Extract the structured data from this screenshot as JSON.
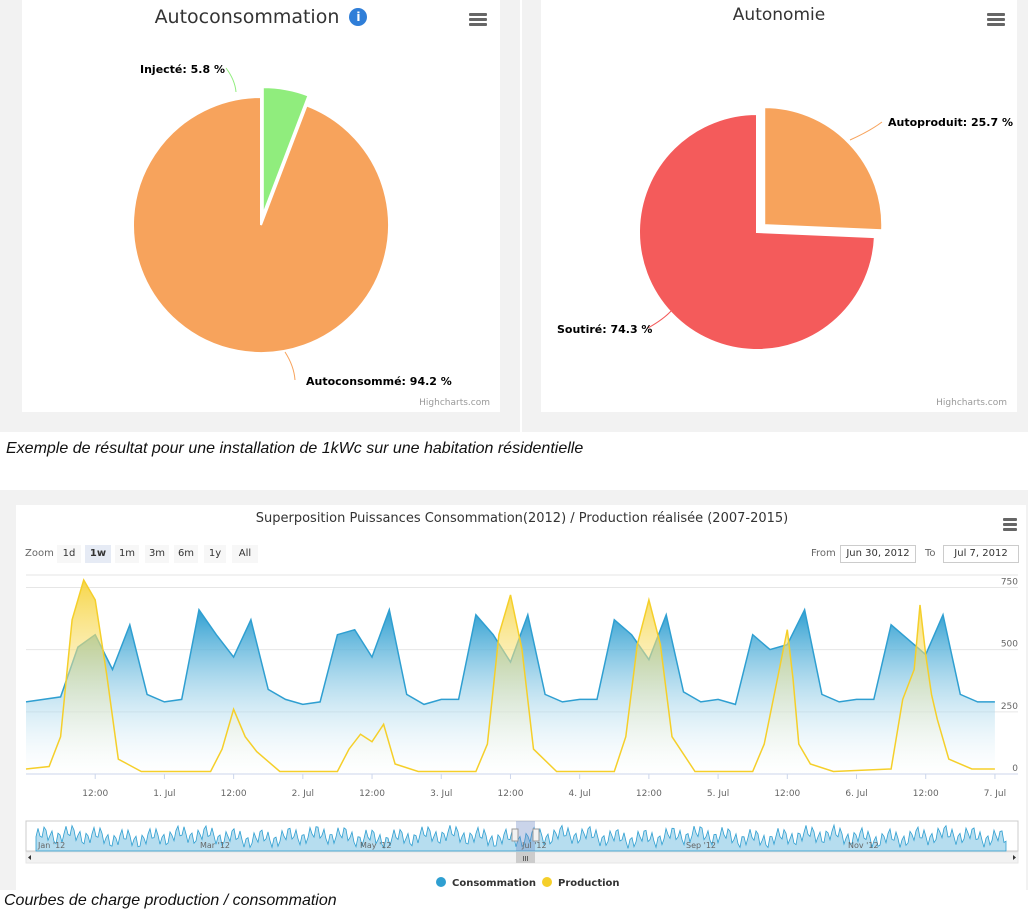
{
  "pie_left": {
    "title": "Autoconsommation",
    "credit": "Highcharts.com"
  },
  "pie_right": {
    "title": "Autonomie",
    "credit": "Highcharts.com"
  },
  "caption_top": "Exemple de résultat pour une installation de 1kWc sur une habitation résidentielle",
  "caption_bottom": "Courbes de charge production / consommation",
  "stock": {
    "title": "Superposition Puissances Consommation(2012) / Production réalisée (2007-2015)",
    "zoom_label": "Zoom",
    "zoom_buttons": [
      "1d",
      "1w",
      "1m",
      "3m",
      "6m",
      "1y",
      "All"
    ],
    "zoom_selected": "1w",
    "from_label": "From",
    "from_value": "Jun 30, 2012",
    "to_label": "To",
    "to_value": "Jul 7, 2012",
    "x_ticks": [
      "12:00",
      "1. Jul",
      "12:00",
      "2. Jul",
      "12:00",
      "3. Jul",
      "12:00",
      "4. Jul",
      "12:00",
      "5. Jul",
      "12:00",
      "6. Jul",
      "12:00",
      "7. Jul"
    ],
    "y_ticks": [
      "0",
      "250",
      "500",
      "750"
    ],
    "navigator_months": [
      "Jan '12",
      "Mar '12",
      "May '12",
      "Jul '12",
      "Sep '12",
      "Nov '12"
    ],
    "navigator_handle_label": "III"
  },
  "colors": {
    "autoconsomme": "#f7a35c",
    "injecte": "#90ed7d",
    "soutire": "#f45b5b",
    "autoproduit": "#f7a35c",
    "consommation": "#2f9fd1",
    "production": "#f5cf2a",
    "info_icon": "#2f7ed8"
  },
  "chart_data": [
    {
      "type": "pie",
      "title": "Autoconsommation",
      "slices": [
        {
          "name": "Injecté",
          "value": 5.8,
          "label": "Injecté: 5.8 %",
          "sliced": true
        },
        {
          "name": "Autoconsommé",
          "value": 94.2,
          "label": "Autoconsommé: 94.2 %"
        }
      ]
    },
    {
      "type": "pie",
      "title": "Autonomie",
      "slices": [
        {
          "name": "Autoproduit",
          "value": 25.7,
          "label": "Autoproduit: 25.7 %",
          "sliced": true
        },
        {
          "name": "Soutiré",
          "value": 74.3,
          "label": "Soutiré: 74.3 %"
        }
      ]
    },
    {
      "type": "area",
      "title": "Superposition Puissances Consommation(2012) / Production réalisée (2007-2015)",
      "x_range": [
        "Jun 30, 2012",
        "Jul 7, 2012"
      ],
      "ylim": [
        0,
        800
      ],
      "y_ticks": [
        0,
        250,
        500,
        750
      ],
      "legend": "bottom-center",
      "series": [
        {
          "name": "Consommation",
          "x": [
            "Jun 30 00:00",
            "Jun 30 06:00",
            "Jun 30 09:00",
            "Jun 30 12:00",
            "Jun 30 15:00",
            "Jun 30 18:00",
            "Jun 30 21:00",
            "Jul 1 00:00",
            "Jul 1 03:00",
            "Jul 1 06:00",
            "Jul 1 09:00",
            "Jul 1 12:00",
            "Jul 1 15:00",
            "Jul 1 18:00",
            "Jul 1 21:00",
            "Jul 2 00:00",
            "Jul 2 03:00",
            "Jul 2 06:00",
            "Jul 2 09:00",
            "Jul 2 12:00",
            "Jul 2 15:00",
            "Jul 2 18:00",
            "Jul 2 21:00",
            "Jul 3 00:00",
            "Jul 3 03:00",
            "Jul 3 06:00",
            "Jul 3 09:00",
            "Jul 3 12:00",
            "Jul 3 15:00",
            "Jul 3 18:00",
            "Jul 3 21:00",
            "Jul 4 00:00",
            "Jul 4 03:00",
            "Jul 4 06:00",
            "Jul 4 09:00",
            "Jul 4 12:00",
            "Jul 4 15:00",
            "Jul 4 18:00",
            "Jul 4 21:00",
            "Jul 5 00:00",
            "Jul 5 03:00",
            "Jul 5 06:00",
            "Jul 5 09:00",
            "Jul 5 12:00",
            "Jul 5 15:00",
            "Jul 5 18:00",
            "Jul 5 21:00",
            "Jul 6 00:00",
            "Jul 6 03:00",
            "Jul 6 06:00",
            "Jul 6 09:00",
            "Jul 6 12:00",
            "Jul 6 15:00",
            "Jul 6 18:00",
            "Jul 6 21:00",
            "Jul 7 00:00"
          ],
          "values": [
            290,
            310,
            510,
            560,
            420,
            600,
            320,
            290,
            300,
            660,
            560,
            470,
            620,
            340,
            300,
            280,
            290,
            560,
            580,
            470,
            660,
            320,
            280,
            300,
            300,
            640,
            560,
            450,
            640,
            320,
            290,
            300,
            300,
            620,
            560,
            460,
            640,
            330,
            290,
            300,
            280,
            560,
            500,
            520,
            660,
            320,
            290,
            300,
            300,
            600,
            540,
            480,
            640,
            320,
            290,
            290
          ]
        },
        {
          "name": "Production",
          "x": [
            "Jun 30 00:00",
            "Jun 30 04:00",
            "Jun 30 06:00",
            "Jun 30 08:00",
            "Jun 30 10:00",
            "Jun 30 12:00",
            "Jun 30 14:00",
            "Jun 30 16:00",
            "Jun 30 20:00",
            "Jul 1 08:00",
            "Jul 1 10:00",
            "Jul 1 12:00",
            "Jul 1 14:00",
            "Jul 1 16:00",
            "Jul 1 20:00",
            "Jul 2 06:00",
            "Jul 2 08:00",
            "Jul 2 10:00",
            "Jul 2 12:00",
            "Jul 2 14:00",
            "Jul 2 16:00",
            "Jul 2 20:00",
            "Jul 3 06:00",
            "Jul 3 08:00",
            "Jul 3 10:00",
            "Jul 3 12:00",
            "Jul 3 14:00",
            "Jul 3 16:00",
            "Jul 3 20:00",
            "Jul 4 06:00",
            "Jul 4 08:00",
            "Jul 4 10:00",
            "Jul 4 12:00",
            "Jul 4 14:00",
            "Jul 4 16:00",
            "Jul 4 20:00",
            "Jul 5 06:00",
            "Jul 5 08:00",
            "Jul 5 10:00",
            "Jul 5 12:00",
            "Jul 5 13:00",
            "Jul 5 14:00",
            "Jul 5 16:00",
            "Jul 5 20:00",
            "Jul 6 06:00",
            "Jul 6 08:00",
            "Jul 6 10:00",
            "Jul 6 11:00",
            "Jul 6 12:00",
            "Jul 6 13:00",
            "Jul 6 14:00",
            "Jul 6 16:00",
            "Jul 6 20:00",
            "Jul 7 00:00"
          ],
          "values": [
            20,
            30,
            150,
            620,
            780,
            700,
            400,
            60,
            10,
            10,
            100,
            260,
            150,
            90,
            10,
            10,
            100,
            160,
            130,
            200,
            40,
            10,
            10,
            120,
            560,
            720,
            500,
            100,
            10,
            10,
            150,
            520,
            700,
            520,
            150,
            10,
            10,
            120,
            350,
            580,
            380,
            120,
            40,
            10,
            20,
            300,
            420,
            680,
            480,
            320,
            220,
            60,
            20,
            20
          ]
        }
      ]
    }
  ]
}
